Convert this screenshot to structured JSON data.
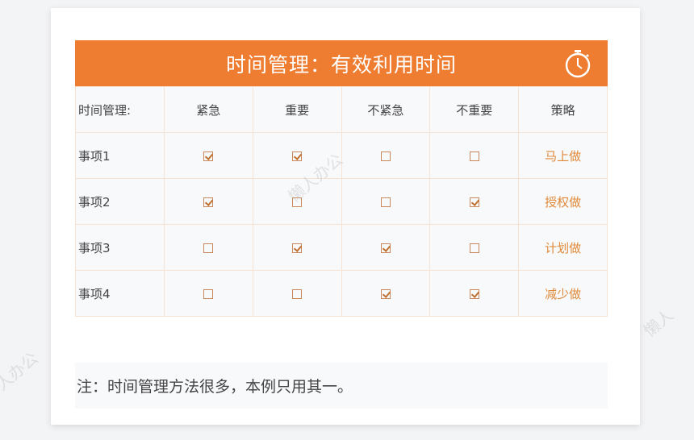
{
  "title": "时间管理：有效利用时间",
  "icons": {
    "header": "stopwatch-icon"
  },
  "accent": "#ee7d31",
  "table": {
    "headers": [
      "时间管理:",
      "紧急",
      "重要",
      "不紧急",
      "不重要",
      "策略"
    ],
    "rows": [
      {
        "label": "事项1",
        "checks": [
          true,
          true,
          false,
          false
        ],
        "strategy": "马上做"
      },
      {
        "label": "事项2",
        "checks": [
          true,
          false,
          false,
          true
        ],
        "strategy": "授权做"
      },
      {
        "label": "事项3",
        "checks": [
          false,
          true,
          true,
          false
        ],
        "strategy": "计划做"
      },
      {
        "label": "事项4",
        "checks": [
          false,
          false,
          true,
          true
        ],
        "strategy": "减少做"
      }
    ]
  },
  "note": "注：时间管理方法很多，本例只用其一。",
  "watermark": "懒人办公"
}
